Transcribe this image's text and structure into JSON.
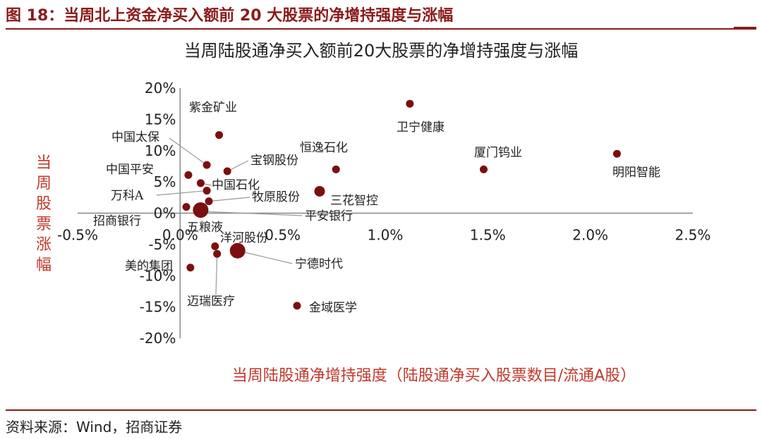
{
  "figure": {
    "title": "图 18：当周北上资金净买入额前 20 大股票的净增持强度与涨幅",
    "source": "资料来源：Wind，招商证券"
  },
  "colors": {
    "brand": "#8B1A1A",
    "point": "#7B0F0F",
    "axis_label": "#C0392B"
  },
  "chart_data": {
    "type": "scatter",
    "title": "当周陆股通净买入额前20大股票的净增持强度与涨幅",
    "xlabel": "当周陆股通净增持强度（陆股通净买入股票数目/流通A股）",
    "ylabel": "当周股票涨幅",
    "xlim": [
      -0.5,
      2.5
    ],
    "ylim": [
      -20,
      20
    ],
    "x_ticks": [
      -0.5,
      0.0,
      0.5,
      1.0,
      1.5,
      2.0,
      2.5
    ],
    "x_tick_labels": [
      "-0.5%",
      "0.0%",
      "0.5%",
      "1.0%",
      "1.5%",
      "2.0%",
      "2.5%"
    ],
    "y_ticks": [
      20,
      15,
      10,
      5,
      0,
      -5,
      -10,
      -15,
      -20
    ],
    "y_tick_labels": [
      "20%",
      "15%",
      "10%",
      "5%",
      "0%",
      "-5%",
      "-10%",
      "-15%",
      "-20%"
    ],
    "grid": false,
    "points": [
      {
        "name": "紫金矿业",
        "x": 0.19,
        "y": 12.5,
        "size": "small"
      },
      {
        "name": "中国太保",
        "x": 0.13,
        "y": 7.7,
        "size": "small"
      },
      {
        "name": "宝钢股份",
        "x": 0.23,
        "y": 6.7,
        "size": "small"
      },
      {
        "name": "中国平安",
        "x": 0.04,
        "y": 6.1,
        "size": "small"
      },
      {
        "name": "中国石化",
        "x": 0.1,
        "y": 4.8,
        "size": "small"
      },
      {
        "name": "万科A",
        "x": 0.13,
        "y": 3.6,
        "size": "small"
      },
      {
        "name": "牧原股份",
        "x": 0.14,
        "y": 1.9,
        "size": "small"
      },
      {
        "name": "招商银行",
        "x": 0.03,
        "y": 1.0,
        "size": "small"
      },
      {
        "name": "五粮液",
        "x": 0.1,
        "y": 0.5,
        "size": "large"
      },
      {
        "name": "平安银行",
        "x": 0.09,
        "y": 0.3,
        "size": "small"
      },
      {
        "name": "洋河股份",
        "x": 0.17,
        "y": -5.3,
        "size": "small"
      },
      {
        "name": "迈瑞医疗",
        "x": 0.18,
        "y": -6.5,
        "size": "small"
      },
      {
        "name": "宁德时代",
        "x": 0.28,
        "y": -6.0,
        "size": "large"
      },
      {
        "name": "美的集团",
        "x": 0.05,
        "y": -8.7,
        "size": "small"
      },
      {
        "name": "恒逸石化",
        "x": 0.76,
        "y": 7.0,
        "size": "small"
      },
      {
        "name": "三花智控",
        "x": 0.68,
        "y": 3.5,
        "size": "medium"
      },
      {
        "name": "金域医学",
        "x": 0.57,
        "y": -14.8,
        "size": "small"
      },
      {
        "name": "卫宁健康",
        "x": 1.12,
        "y": 17.5,
        "size": "small"
      },
      {
        "name": "厦门钨业",
        "x": 1.48,
        "y": 7.0,
        "size": "small"
      },
      {
        "name": "明阳智能",
        "x": 2.13,
        "y": 9.5,
        "size": "small"
      }
    ]
  }
}
